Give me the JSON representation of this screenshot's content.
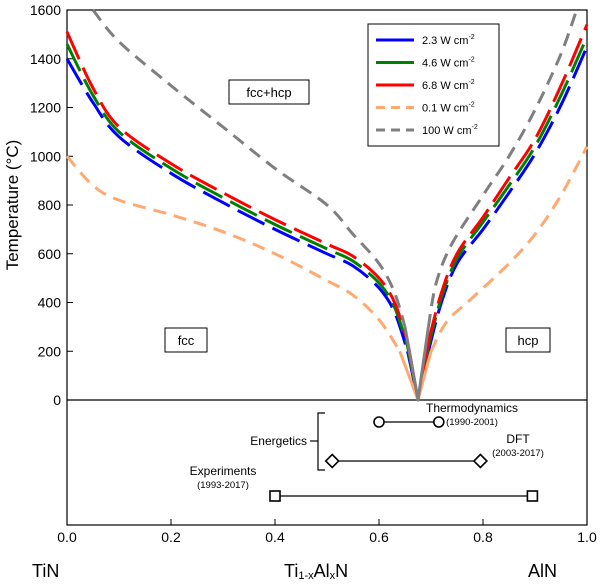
{
  "chart_data": {
    "type": "line",
    "ylabel": "Temperature (°C)",
    "xlabel_prefix": "Ti",
    "xlabel_sub1": "1-x",
    "xlabel_mid": "Al",
    "xlabel_sub2": "x",
    "xlabel_suffix": "N",
    "xlim": [
      0,
      1.0
    ],
    "ylim": [
      0,
      1600
    ],
    "x_ticks": [
      "0.0",
      "0.2",
      "0.4",
      "0.6",
      "0.8",
      "1.0"
    ],
    "y_ticks": [
      "0",
      "200",
      "400",
      "600",
      "800",
      "1000",
      "1200",
      "1400",
      "1600"
    ],
    "endpoints": {
      "left": "TiN",
      "middle": "Ti1-xAlxN",
      "right": "AlN"
    },
    "regions": {
      "top": "fcc+hcp",
      "left": "fcc",
      "right": "hcp"
    },
    "apex": [
      0.675,
      0
    ],
    "series": [
      {
        "name": "2.3",
        "unit": "W cm",
        "unit_sup": "-2",
        "color": "#0000ff",
        "style": "dashed-long",
        "left": [
          [
            0,
            1400
          ],
          [
            0.05,
            1220
          ],
          [
            0.1,
            1080
          ],
          [
            0.2,
            930
          ],
          [
            0.3,
            810
          ],
          [
            0.4,
            700
          ],
          [
            0.5,
            600
          ],
          [
            0.55,
            550
          ],
          [
            0.6,
            460
          ],
          [
            0.63,
            360
          ],
          [
            0.655,
            200
          ]
        ],
        "right": [
          [
            0.695,
            200
          ],
          [
            0.72,
            400
          ],
          [
            0.75,
            560
          ],
          [
            0.8,
            700
          ],
          [
            0.85,
            850
          ],
          [
            0.9,
            1010
          ],
          [
            0.95,
            1210
          ],
          [
            1.0,
            1450
          ]
        ]
      },
      {
        "name": "4.6",
        "unit": "W cm",
        "unit_sup": "-2",
        "color": "#008000",
        "style": "dashed-long",
        "left": [
          [
            0,
            1460
          ],
          [
            0.05,
            1250
          ],
          [
            0.1,
            1100
          ],
          [
            0.2,
            950
          ],
          [
            0.3,
            830
          ],
          [
            0.4,
            720
          ],
          [
            0.5,
            620
          ],
          [
            0.55,
            570
          ],
          [
            0.6,
            480
          ],
          [
            0.63,
            380
          ],
          [
            0.655,
            220
          ]
        ],
        "right": [
          [
            0.695,
            220
          ],
          [
            0.72,
            420
          ],
          [
            0.75,
            580
          ],
          [
            0.8,
            730
          ],
          [
            0.85,
            880
          ],
          [
            0.9,
            1040
          ],
          [
            0.95,
            1250
          ],
          [
            1.0,
            1490
          ]
        ]
      },
      {
        "name": "6.8",
        "unit": "W cm",
        "unit_sup": "-2",
        "color": "#ff0000",
        "style": "dashed-long",
        "left": [
          [
            0,
            1510
          ],
          [
            0.05,
            1280
          ],
          [
            0.1,
            1120
          ],
          [
            0.2,
            970
          ],
          [
            0.3,
            850
          ],
          [
            0.4,
            740
          ],
          [
            0.5,
            640
          ],
          [
            0.55,
            590
          ],
          [
            0.6,
            500
          ],
          [
            0.63,
            400
          ],
          [
            0.655,
            240
          ]
        ],
        "right": [
          [
            0.695,
            240
          ],
          [
            0.72,
            440
          ],
          [
            0.75,
            600
          ],
          [
            0.8,
            750
          ],
          [
            0.85,
            910
          ],
          [
            0.9,
            1070
          ],
          [
            0.95,
            1290
          ],
          [
            1.0,
            1540
          ]
        ]
      },
      {
        "name": "0.1",
        "unit": "W cm",
        "unit_sup": "-2",
        "color": "#ffa970",
        "style": "dashed",
        "left": [
          [
            0,
            1000
          ],
          [
            0.05,
            880
          ],
          [
            0.1,
            820
          ],
          [
            0.2,
            760
          ],
          [
            0.3,
            690
          ],
          [
            0.4,
            600
          ],
          [
            0.5,
            490
          ],
          [
            0.55,
            430
          ],
          [
            0.6,
            330
          ],
          [
            0.64,
            200
          ]
        ],
        "right": [
          [
            0.7,
            200
          ],
          [
            0.73,
            320
          ],
          [
            0.78,
            420
          ],
          [
            0.85,
            560
          ],
          [
            0.9,
            680
          ],
          [
            0.95,
            840
          ],
          [
            1.0,
            1040
          ]
        ]
      },
      {
        "name": "100",
        "unit": "W cm",
        "unit_sup": "-2",
        "color": "#7f7f7f",
        "style": "dashed",
        "left": [
          [
            0.05,
            1600
          ],
          [
            0.1,
            1470
          ],
          [
            0.2,
            1290
          ],
          [
            0.3,
            1120
          ],
          [
            0.4,
            950
          ],
          [
            0.5,
            800
          ],
          [
            0.55,
            680
          ],
          [
            0.6,
            560
          ],
          [
            0.63,
            440
          ],
          [
            0.65,
            300
          ]
        ],
        "right": [
          [
            0.695,
            300
          ],
          [
            0.71,
            480
          ],
          [
            0.74,
            640
          ],
          [
            0.8,
            840
          ],
          [
            0.85,
            1000
          ],
          [
            0.9,
            1190
          ],
          [
            0.95,
            1420
          ],
          [
            0.98,
            1600
          ]
        ]
      }
    ],
    "ranges": [
      {
        "label": "Thermodynamics",
        "period": "(1990-2001)",
        "marker": "circle",
        "x1": 0.6,
        "x2": 0.715
      },
      {
        "label": "DFT",
        "period": "(2003-2017)",
        "marker": "diamond",
        "x1": 0.51,
        "x2": 0.795
      },
      {
        "label": "Experiments",
        "period": "(1993-2017)",
        "marker": "square",
        "x1": 0.4,
        "x2": 0.895
      }
    ],
    "group_label": "Energetics"
  }
}
